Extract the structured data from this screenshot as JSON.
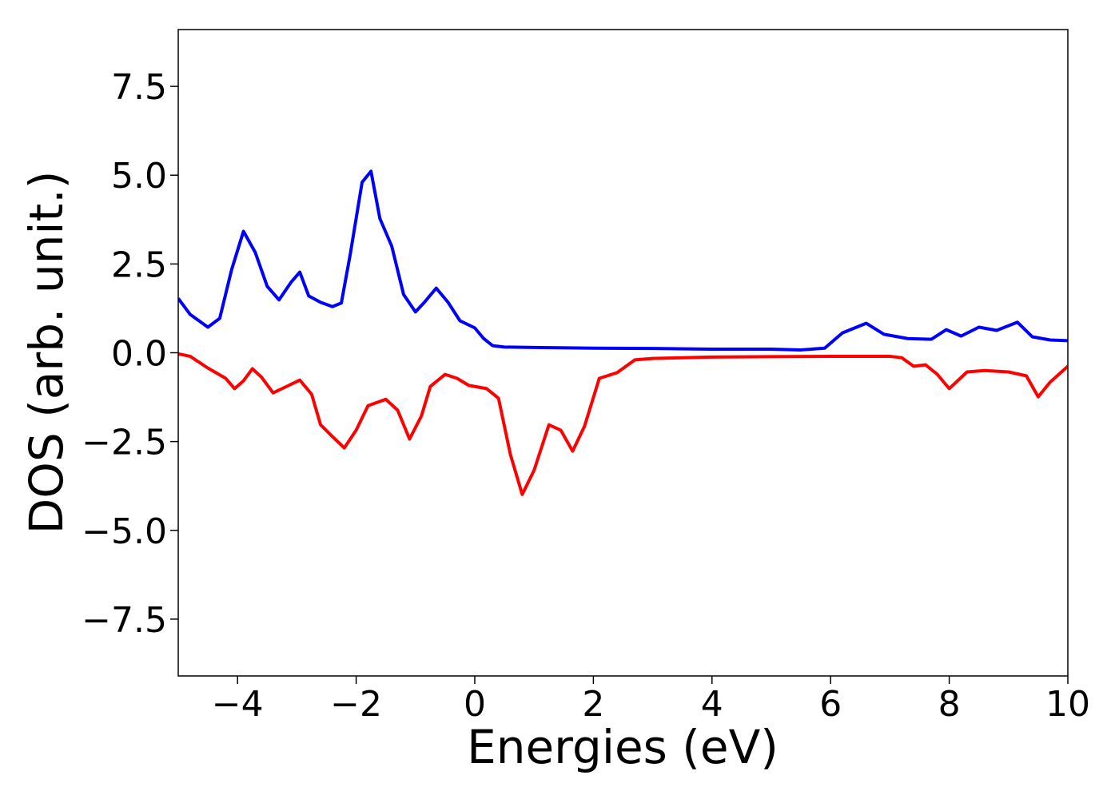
{
  "chart_data": {
    "type": "line",
    "xlabel": "Energies (eV)",
    "ylabel": "DOS (arb. unit.)",
    "xlim": [
      -5,
      10
    ],
    "ylim": [
      -9.1,
      9.1
    ],
    "xticks": [
      {
        "value": -4,
        "label": "−4"
      },
      {
        "value": -2,
        "label": "−2"
      },
      0,
      2,
      4,
      6,
      8,
      10
    ],
    "yticks": [
      {
        "value": -7.5,
        "label": "−7.5"
      },
      {
        "value": -5,
        "label": "−5.0"
      },
      {
        "value": -2.5,
        "label": "−2.5"
      },
      {
        "value": 0,
        "label": "0.0"
      },
      2.5,
      {
        "value": 5,
        "label": "5.0"
      },
      7.5
    ],
    "grid": false,
    "series": [
      {
        "color": "#0000ff",
        "x": [
          -5,
          -4.8,
          -4.5,
          -4.3,
          -4.1,
          -3.9,
          -3.7,
          -3.5,
          -3.3,
          -3.1,
          -2.95,
          -2.8,
          -2.6,
          -2.4,
          -2.25,
          -2.1,
          -1.9,
          -1.75,
          -1.6,
          -1.4,
          -1.2,
          -1.0,
          -0.85,
          -0.65,
          -0.45,
          -0.25,
          0.0,
          0.15,
          0.3,
          0.5,
          1,
          2,
          3,
          4,
          5,
          5.5,
          5.9,
          6.2,
          6.6,
          6.9,
          7.3,
          7.7,
          7.95,
          8.2,
          8.5,
          8.8,
          9.15,
          9.4,
          9.7,
          10
        ],
        "values": [
          1.53,
          1.08,
          0.72,
          0.97,
          2.34,
          3.42,
          2.82,
          1.87,
          1.49,
          1.98,
          2.27,
          1.6,
          1.42,
          1.3,
          1.4,
          2.77,
          4.8,
          5.11,
          3.78,
          3.0,
          1.64,
          1.15,
          1.42,
          1.82,
          1.42,
          0.9,
          0.7,
          0.4,
          0.2,
          0.16,
          0.15,
          0.13,
          0.12,
          0.1,
          0.1,
          0.08,
          0.13,
          0.56,
          0.83,
          0.52,
          0.4,
          0.38,
          0.65,
          0.47,
          0.72,
          0.63,
          0.86,
          0.45,
          0.36,
          0.34
        ]
      },
      {
        "color": "#ff0000",
        "x": [
          -5,
          -4.8,
          -4.5,
          -4.2,
          -4.05,
          -3.9,
          -3.75,
          -3.6,
          -3.4,
          -3.2,
          -2.95,
          -2.75,
          -2.6,
          -2.4,
          -2.2,
          -2.0,
          -1.8,
          -1.5,
          -1.3,
          -1.1,
          -0.9,
          -0.75,
          -0.5,
          -0.3,
          -0.1,
          0.2,
          0.4,
          0.6,
          0.8,
          1.0,
          1.25,
          1.45,
          1.65,
          1.85,
          2.1,
          2.4,
          2.7,
          3,
          4,
          5,
          6,
          7,
          7.2,
          7.4,
          7.6,
          7.8,
          8.0,
          8.3,
          8.6,
          9.0,
          9.3,
          9.5,
          9.7,
          10
        ],
        "values": [
          -0.03,
          -0.1,
          -0.43,
          -0.72,
          -1.01,
          -0.79,
          -0.45,
          -0.68,
          -1.13,
          -0.97,
          -0.77,
          -1.17,
          -2.03,
          -2.36,
          -2.68,
          -2.18,
          -1.49,
          -1.31,
          -1.62,
          -2.43,
          -1.78,
          -0.95,
          -0.61,
          -0.72,
          -0.92,
          -1.01,
          -1.28,
          -2.86,
          -3.99,
          -3.31,
          -2.03,
          -2.18,
          -2.77,
          -2.07,
          -0.72,
          -0.56,
          -0.2,
          -0.16,
          -0.12,
          -0.11,
          -0.1,
          -0.1,
          -0.14,
          -0.38,
          -0.34,
          -0.61,
          -1.01,
          -0.54,
          -0.5,
          -0.54,
          -0.65,
          -1.24,
          -0.83,
          -0.38
        ]
      }
    ]
  }
}
